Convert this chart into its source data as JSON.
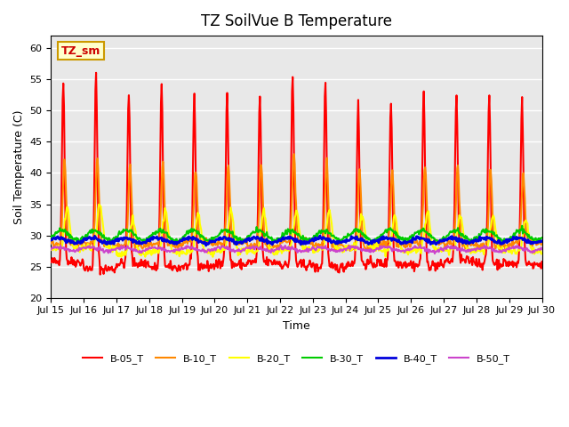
{
  "title": "TZ SoilVue B Temperature",
  "xlabel": "Time",
  "ylabel": "Soil Temperature (C)",
  "ylim": [
    20,
    62
  ],
  "yticks": [
    20,
    25,
    30,
    35,
    40,
    45,
    50,
    55,
    60
  ],
  "x_labels": [
    "Jul 15",
    "Jul 16",
    "Jul 17",
    "Jul 18",
    "Jul 19",
    "Jul 20",
    "Jul 21",
    "Jul 22",
    "Jul 23",
    "Jul 24",
    "Jul 25",
    "Jul 26",
    "Jul 27",
    "Jul 28",
    "Jul 29",
    "Jul 30"
  ],
  "annotation_text": "TZ_sm",
  "annotation_color": "#cc0000",
  "annotation_bg": "#ffffcc",
  "annotation_border": "#cc9900",
  "bg_color": "#e8e8e8",
  "legend_entries": [
    "B-05_T",
    "B-10_T",
    "B-20_T",
    "B-30_T",
    "B-40_T",
    "B-50_T"
  ],
  "line_colors": [
    "#ff0000",
    "#ff8800",
    "#ffff00",
    "#00cc00",
    "#0000dd",
    "#cc44cc"
  ],
  "line_widths": [
    1.5,
    1.5,
    1.5,
    1.5,
    2.0,
    1.5
  ],
  "n_days": 15,
  "points_per_day": 48
}
